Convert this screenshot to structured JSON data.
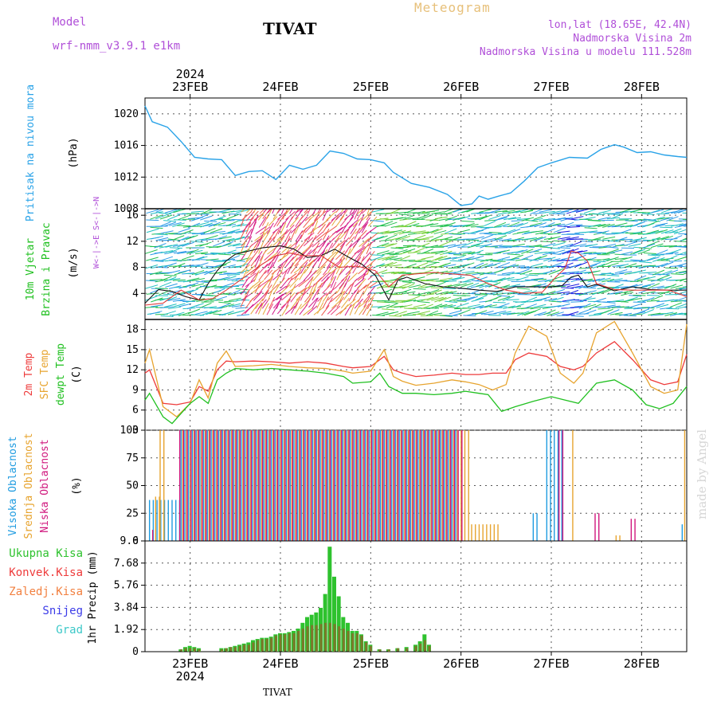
{
  "header": {
    "model_label": "Model",
    "model_name": "wrf-nmm_v3.9.1  e1km",
    "station": "TIVAT",
    "meteogram": "Meteogram",
    "lonlat": "lon,lat (18.65E, 42.4N)",
    "elevation": "Nadmorska Visina 2m",
    "model_elevation": "Nadmorska Visina u modelu 111.528m"
  },
  "footer": {
    "station": "TIVAT",
    "watermark": "made by Angel"
  },
  "colors": {
    "pressure": "#2aa3e8",
    "temp": "#ee3b3b",
    "sfc": "#e7a42f",
    "dewpt": "#20c020",
    "high_cloud": "#1e9be0",
    "mid_cloud": "#e7a42f",
    "low_cloud": "#d0187e",
    "total_precip": "#2ec22e",
    "conv_precip": "#ee3b3b",
    "freezing": "#f28040",
    "snow": "#3b3be8",
    "hail": "#3cc8c8",
    "grid": "#555555",
    "header": "#b04fd8"
  },
  "chart_data": [
    {
      "type": "line",
      "panel": "pressure",
      "ylabel_parts": [
        "Pritisak na nivou mora",
        "(hPa)"
      ],
      "year": "2024",
      "x_tick_labels": [
        "23FEB",
        "24FEB",
        "25FEB",
        "26FEB",
        "27FEB",
        "28FEB"
      ],
      "x_ticks_day": [
        0.5,
        1.5,
        2.5,
        3.5,
        4.5,
        5.5
      ],
      "xlim_day": [
        0,
        6.0
      ],
      "ylim": [
        1008,
        1022
      ],
      "y_ticks": [
        1008,
        1012,
        1016,
        1020
      ],
      "grid": true,
      "series": [
        {
          "name": "",
          "x": [
            0,
            0.08,
            0.25,
            0.4,
            0.55,
            0.7,
            0.85,
            1.0,
            1.15,
            1.3,
            1.45,
            1.6,
            1.75,
            1.9,
            2.05,
            2.2,
            2.35,
            2.5,
            2.65,
            2.75,
            2.95,
            3.15,
            3.35,
            3.5,
            3.62,
            3.7,
            3.8,
            3.92,
            4.05,
            4.2,
            4.35,
            4.5,
            4.7,
            4.9,
            5.05,
            5.2,
            5.3,
            5.45,
            5.6,
            5.75,
            5.9,
            6.0
          ],
          "y": [
            1021,
            1019,
            1018.3,
            1016.5,
            1014.5,
            1014.3,
            1014.2,
            1012.2,
            1012.7,
            1012.8,
            1011.7,
            1013.5,
            1013,
            1013.5,
            1015.3,
            1015,
            1014.3,
            1014.2,
            1013.8,
            1012.6,
            1011.2,
            1010.7,
            1009.8,
            1008.4,
            1008.6,
            1009.6,
            1009.2,
            1009.6,
            1010,
            1011.5,
            1013.2,
            1013.8,
            1014.5,
            1014.4,
            1015.5,
            1016.1,
            1015.8,
            1015.1,
            1015.2,
            1014.8,
            1014.6,
            1014.5
          ]
        }
      ]
    },
    {
      "type": "line",
      "panel": "wind",
      "ylabel_parts": [
        "10m Vjetar",
        "Brzina i Pravac",
        "(m/s)"
      ],
      "compass_label": "W<-|->E  S<-|->N",
      "ylim": [
        0,
        17
      ],
      "y_ticks": [
        4,
        8,
        12,
        16
      ],
      "grid": true,
      "barb_colors": [
        "#1a1ae0",
        "#2a9ae6",
        "#20c0c0",
        "#22c050",
        "#7ad03a",
        "#cfd23a",
        "#e6a83a",
        "#ee5a4a",
        "#e83a7a",
        "#d21a8a"
      ],
      "series": [
        {
          "name": "",
          "x": [
            0,
            0.15,
            0.3,
            0.45,
            0.6,
            0.7,
            0.8,
            0.9,
            1.0,
            1.15,
            1.3,
            1.5,
            1.65,
            1.8,
            1.95,
            2.1,
            2.25,
            2.4,
            2.55,
            2.7,
            2.8,
            2.9,
            3.0,
            3.1,
            3.3,
            3.5,
            3.7,
            3.9,
            4.1,
            4.3,
            4.5,
            4.62,
            4.72,
            4.8,
            4.9,
            5.0,
            5.2,
            5.4,
            5.6,
            5.8,
            6.0
          ],
          "y": [
            2.5,
            4.6,
            4.3,
            3.5,
            3.0,
            5.5,
            7.5,
            9.0,
            10.0,
            10.5,
            11.0,
            11.3,
            10.8,
            9.5,
            9.8,
            10.8,
            9.6,
            8.5,
            6.8,
            3.0,
            6.0,
            6.5,
            6.0,
            5.5,
            5.0,
            4.8,
            4.5,
            4.3,
            5.0,
            5.0,
            5.0,
            5.2,
            6.5,
            6.8,
            5.0,
            5.4,
            4.4,
            5.0,
            4.6,
            4.5,
            4.5
          ]
        },
        {
          "name": "",
          "x": [
            0,
            0.2,
            0.4,
            0.6,
            0.75,
            0.9,
            1.1,
            1.3,
            1.45,
            1.6,
            1.75,
            1.95,
            2.15,
            2.35,
            2.55,
            2.7,
            2.85,
            3.0,
            3.2,
            3.4,
            3.6,
            3.8,
            4.0,
            4.2,
            4.4,
            4.55,
            4.65,
            4.72,
            4.8,
            4.9,
            5.0,
            5.2,
            5.4,
            5.6,
            5.8,
            6.0
          ],
          "y": [
            2.2,
            2.5,
            4.5,
            3.0,
            3.2,
            4.5,
            6.5,
            8.5,
            9.8,
            10.2,
            9.8,
            9.8,
            8.0,
            8.2,
            7.5,
            5.0,
            6.8,
            7.0,
            7.2,
            7.0,
            6.8,
            5.5,
            4.5,
            4.0,
            4.2,
            6.5,
            7.8,
            10.5,
            10.2,
            9.0,
            5.5,
            4.6,
            4.5,
            4.5,
            4.5,
            3.5
          ]
        }
      ]
    },
    {
      "type": "line",
      "panel": "temperature",
      "ylabel_parts": [
        "2m Temp",
        "SFC Temp",
        "dewpt Temp",
        "(C)"
      ],
      "ylim": [
        3,
        19.5
      ],
      "y_ticks": [
        3,
        6,
        9,
        12,
        15,
        18
      ],
      "grid": true,
      "series": [
        {
          "name": "2m Temp",
          "x": [
            0,
            0.05,
            0.2,
            0.35,
            0.5,
            0.6,
            0.7,
            0.8,
            0.9,
            1.0,
            1.2,
            1.4,
            1.6,
            1.8,
            2.0,
            2.2,
            2.3,
            2.5,
            2.65,
            2.75,
            2.85,
            3.0,
            3.2,
            3.4,
            3.55,
            3.7,
            3.85,
            4.0,
            4.1,
            4.25,
            4.45,
            4.6,
            4.75,
            4.85,
            5.0,
            5.2,
            5.4,
            5.6,
            5.75,
            5.9,
            6.0
          ],
          "y": [
            11.5,
            12,
            7.0,
            6.8,
            7.2,
            9.5,
            8.8,
            12,
            13.3,
            13.2,
            13.3,
            13.2,
            13.0,
            13.2,
            13.0,
            12.5,
            12.3,
            12.5,
            14,
            12,
            11.5,
            11.0,
            11.2,
            11.5,
            11.3,
            11.3,
            11.5,
            11.5,
            13.5,
            14.5,
            14.0,
            12.5,
            12.0,
            12.5,
            14.5,
            16.2,
            13.5,
            10.5,
            9.8,
            10.2,
            14.3
          ]
        },
        {
          "name": "SFC Temp",
          "x": [
            0,
            0.05,
            0.2,
            0.35,
            0.5,
            0.6,
            0.7,
            0.8,
            0.9,
            1.0,
            1.2,
            1.4,
            1.6,
            1.8,
            2.0,
            2.2,
            2.3,
            2.5,
            2.65,
            2.75,
            2.85,
            3.0,
            3.2,
            3.4,
            3.55,
            3.7,
            3.85,
            4.0,
            4.1,
            4.25,
            4.45,
            4.6,
            4.75,
            4.85,
            5.0,
            5.2,
            5.4,
            5.6,
            5.75,
            5.9,
            6.0
          ],
          "y": [
            13,
            15,
            6.5,
            5.0,
            7.0,
            10.5,
            7.8,
            13,
            14.8,
            12.5,
            12.6,
            12.8,
            12.5,
            12.3,
            12.2,
            11.8,
            11.5,
            11.8,
            15,
            11,
            10.3,
            9.7,
            10.0,
            10.5,
            10.2,
            9.8,
            9.0,
            9.8,
            14.5,
            18.5,
            17.0,
            11.5,
            10.0,
            11.5,
            17.5,
            19.2,
            14.5,
            9.5,
            8.5,
            9.0,
            18.8
          ]
        },
        {
          "name": "dewpt Temp",
          "x": [
            0,
            0.05,
            0.2,
            0.3,
            0.4,
            0.5,
            0.6,
            0.7,
            0.8,
            0.9,
            1.0,
            1.2,
            1.4,
            1.6,
            1.8,
            2.0,
            2.2,
            2.3,
            2.5,
            2.6,
            2.7,
            2.85,
            3.0,
            3.2,
            3.4,
            3.55,
            3.7,
            3.8,
            3.95,
            4.1,
            4.3,
            4.5,
            4.65,
            4.8,
            5.0,
            5.2,
            5.4,
            5.55,
            5.7,
            5.85,
            6.0
          ],
          "y": [
            7.5,
            8.5,
            5.0,
            4.0,
            5.5,
            7.0,
            8.0,
            7.0,
            10.5,
            11.5,
            12.2,
            12.0,
            12.2,
            12.0,
            11.8,
            11.5,
            11.0,
            10.0,
            10.2,
            11.5,
            9.5,
            8.5,
            8.5,
            8.3,
            8.5,
            8.8,
            8.5,
            8.3,
            5.8,
            6.5,
            7.3,
            8.0,
            7.5,
            7.0,
            10.0,
            10.5,
            9.0,
            6.8,
            6.2,
            7.0,
            9.5
          ]
        }
      ]
    },
    {
      "type": "bar",
      "panel": "cloud",
      "ylabel_parts": [
        "Visoka Oblacnost",
        "Srednja Oblacnost",
        "Niska Oblacnost",
        "(%)"
      ],
      "ylim": [
        0,
        100
      ],
      "y_ticks": [
        0,
        25,
        50,
        75,
        100
      ],
      "grid": true,
      "series": [
        {
          "name": "Visoka Oblacnost",
          "x_ranges": [
            [
              0.05,
              0.4,
              37
            ],
            [
              0.4,
              3.45,
              100
            ],
            [
              4.3,
              4.35,
              25
            ],
            [
              4.45,
              4.62,
              100
            ],
            [
              5.95,
              5.98,
              15
            ]
          ]
        },
        {
          "name": "Srednja Oblacnost",
          "x_ranges": [
            [
              0.1,
              0.15,
              40
            ],
            [
              0.15,
              0.2,
              100
            ],
            [
              0.4,
              3.6,
              100
            ],
            [
              3.6,
              3.9,
              15
            ],
            [
              4.72,
              4.75,
              100
            ],
            [
              5.2,
              5.25,
              5
            ],
            [
              5.96,
              6.0,
              100
            ]
          ]
        },
        {
          "name": "Niska Oblacnost",
          "x_ranges": [
            [
              0.05,
              0.08,
              10
            ],
            [
              0.35,
              3.5,
              100
            ],
            [
              4.55,
              4.6,
              100
            ],
            [
              4.95,
              5.0,
              25
            ],
            [
              5.35,
              5.4,
              20
            ]
          ]
        }
      ]
    },
    {
      "type": "bar",
      "panel": "precip",
      "ylabel_parts": [
        "Ukupna Kisa",
        "Konvek.Kisa",
        "Zaledj.Kisa",
        "Snijeg",
        "Grad",
        "1hr Precip (mm)"
      ],
      "ylim": [
        0,
        9.6
      ],
      "y_ticks": [
        0,
        1.92,
        3.84,
        5.76,
        7.68,
        9.6
      ],
      "y_tick_labels": [
        "0",
        "1.92",
        "3.84",
        "5.76",
        "7.68",
        "9.6"
      ],
      "grid": true,
      "series": [
        {
          "name": "Ukupna Kisa",
          "x": [
            0.4,
            0.45,
            0.5,
            0.55,
            0.6,
            0.85,
            0.9,
            0.95,
            1.0,
            1.05,
            1.1,
            1.15,
            1.2,
            1.25,
            1.3,
            1.35,
            1.4,
            1.45,
            1.5,
            1.55,
            1.6,
            1.65,
            1.7,
            1.75,
            1.8,
            1.85,
            1.9,
            1.95,
            2.0,
            2.05,
            2.1,
            2.15,
            2.2,
            2.25,
            2.3,
            2.35,
            2.4,
            2.45,
            2.5,
            2.6,
            2.7,
            2.8,
            2.9,
            3.0,
            3.05,
            3.1,
            3.15
          ],
          "y": [
            0.2,
            0.4,
            0.5,
            0.4,
            0.3,
            0.3,
            0.3,
            0.4,
            0.5,
            0.6,
            0.7,
            0.8,
            1.0,
            1.1,
            1.2,
            1.2,
            1.3,
            1.5,
            1.6,
            1.6,
            1.7,
            1.8,
            2.0,
            2.5,
            3.0,
            3.2,
            3.4,
            3.8,
            5.0,
            9.1,
            6.5,
            4.8,
            3.0,
            2.5,
            1.8,
            1.8,
            1.5,
            0.9,
            0.6,
            0.2,
            0.2,
            0.3,
            0.4,
            0.6,
            0.9,
            1.5,
            0.6
          ]
        },
        {
          "name": "Konvek.Kisa",
          "x": [
            0.4,
            0.45,
            0.5,
            0.55,
            0.6,
            0.85,
            0.9,
            0.95,
            1.0,
            1.05,
            1.1,
            1.15,
            1.2,
            1.25,
            1.3,
            1.35,
            1.4,
            1.45,
            1.5,
            1.55,
            1.6,
            1.65,
            1.7,
            1.75,
            1.8,
            1.85,
            1.9,
            1.95,
            2.0,
            2.05,
            2.1,
            2.15,
            2.2,
            2.25,
            2.3,
            2.35,
            2.4,
            2.45,
            2.5,
            2.6,
            2.7,
            2.8,
            2.9,
            3.0,
            3.05,
            3.1,
            3.15
          ],
          "y": [
            0.2,
            0.3,
            0.3,
            0.3,
            0.2,
            0.2,
            0.3,
            0.4,
            0.4,
            0.5,
            0.6,
            0.6,
            0.8,
            1.0,
            1.1,
            1.1,
            1.2,
            1.4,
            1.5,
            1.5,
            1.6,
            1.6,
            1.8,
            2.0,
            2.2,
            2.3,
            2.3,
            2.4,
            2.5,
            2.5,
            2.4,
            2.2,
            2.0,
            1.8,
            1.6,
            1.6,
            1.4,
            0.8,
            0.5,
            0.2,
            0.2,
            0.3,
            0.3,
            0.5,
            0.7,
            1.0,
            0.5
          ]
        },
        {
          "name": "Zaledj.Kisa",
          "x": [],
          "y": []
        },
        {
          "name": "Snijeg",
          "x": [],
          "y": []
        },
        {
          "name": "Grad",
          "x": [],
          "y": []
        }
      ]
    }
  ]
}
